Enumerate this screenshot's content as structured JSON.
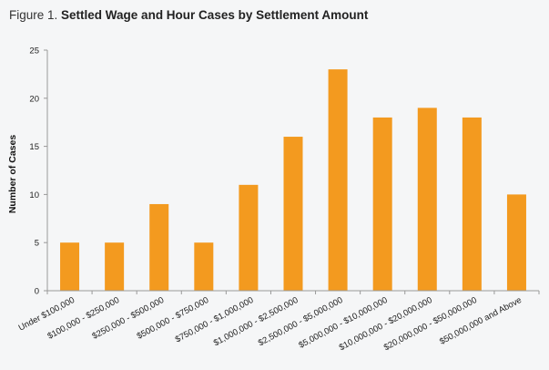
{
  "figure": {
    "prefix": "Figure 1.",
    "title": "Settled Wage and Hour Cases by Settlement Amount"
  },
  "colors": {
    "bar": "#f39a1f",
    "axis": "#999999",
    "background": "#f5f6f7"
  },
  "chart_data": {
    "type": "bar",
    "title": "Settled Wage and Hour Cases by Settlement Amount",
    "xlabel": "",
    "ylabel": "Number of Cases",
    "ylim": [
      0,
      25
    ],
    "yticks": [
      0,
      5,
      10,
      15,
      20,
      25
    ],
    "grid": false,
    "categories": [
      "Under $100,000",
      "$100,000 - $250,000",
      "$250,000 - $500,000",
      "$500,000 - $750,000",
      "$750,000 - $1,000,000",
      "$1,000,000 - $2,500,000",
      "$2,500,000 - $5,000,000",
      "$5,000,000 - $10,000,000",
      "$10,000,000 - $20,000,000",
      "$20,000,000 - $50,000,000",
      "$50,000,000 and Above"
    ],
    "values": [
      5,
      5,
      9,
      5,
      11,
      16,
      23,
      18,
      19,
      18,
      10
    ]
  }
}
